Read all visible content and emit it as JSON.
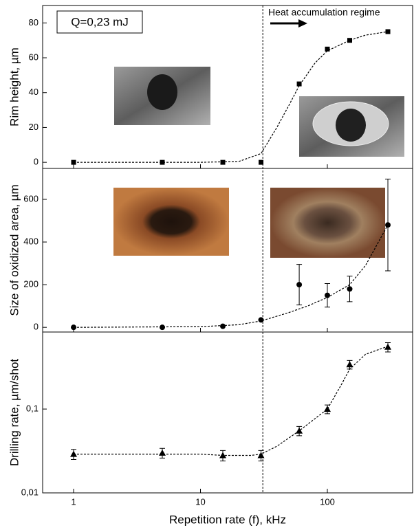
{
  "chart_data": [
    {
      "type": "scatter",
      "ylabel": "Rim height, µm",
      "xlog": true,
      "xlim": [
        0.57,
        470
      ],
      "xticks": [
        1,
        10,
        100
      ],
      "ylim": [
        -3.5,
        90
      ],
      "yticks": [
        0,
        20,
        40,
        60,
        80
      ],
      "vline": 31,
      "annotations": [
        "Q=0,23 mJ",
        "Heat accumulation regime"
      ],
      "series": [
        {
          "marker": "square",
          "color": "#000000",
          "x": [
            1,
            5,
            15,
            30,
            60,
            100,
            150,
            300
          ],
          "values": [
            0,
            0,
            0,
            0,
            45,
            65,
            70,
            75
          ]
        },
        {
          "marker": "none",
          "line_style": "dashed",
          "color": "#000000",
          "x": [
            1,
            10,
            20,
            30,
            40,
            50,
            60,
            80,
            100,
            150,
            200,
            300
          ],
          "values": [
            0,
            0,
            0.5,
            5,
            20,
            33,
            44,
            57,
            64,
            70,
            73,
            75
          ]
        }
      ]
    },
    {
      "type": "scatter",
      "ylabel": "Size of oxidized area, µm",
      "xlog": true,
      "xlim": [
        0.57,
        470
      ],
      "xticks": [
        1,
        10,
        100
      ],
      "ylim": [
        -22,
        745
      ],
      "yticks": [
        0,
        200,
        400,
        600
      ],
      "series": [
        {
          "marker": "circle",
          "color": "#000000",
          "x": [
            1,
            5,
            15,
            30,
            60,
            100,
            150,
            300
          ],
          "values": [
            0,
            0,
            5,
            35,
            200,
            150,
            180,
            480
          ],
          "errors": [
            0,
            0,
            0,
            0,
            95,
            55,
            60,
            215
          ]
        },
        {
          "marker": "none",
          "line_style": "dashed",
          "color": "#000000",
          "x": [
            1,
            10,
            20,
            30,
            50,
            70,
            100,
            150,
            200,
            300
          ],
          "values": [
            0,
            3,
            12,
            30,
            70,
            100,
            140,
            200,
            290,
            480
          ]
        }
      ]
    },
    {
      "type": "scatter",
      "ylabel": "Drilling rate, µm/shot",
      "xlabel": "Repetition rate (f), kHz",
      "xlog": true,
      "ylog": true,
      "xlim": [
        0.57,
        470
      ],
      "xticks": [
        1,
        10,
        100
      ],
      "ylim": [
        0.01,
        0.83
      ],
      "yticks": [
        {
          "value": 0.01,
          "label": "0,01"
        },
        {
          "value": 0.1,
          "label": "0,1"
        }
      ],
      "series": [
        {
          "marker": "triangle",
          "color": "#000000",
          "x": [
            1,
            5,
            15,
            30,
            60,
            100,
            150,
            300
          ],
          "values": [
            0.029,
            0.03,
            0.028,
            0.028,
            0.055,
            0.1,
            0.34,
            0.55
          ],
          "errors": [
            0.004,
            0.004,
            0.004,
            0.004,
            0.007,
            0.012,
            0.04,
            0.07
          ]
        },
        {
          "marker": "none",
          "line_style": "dashed",
          "color": "#000000",
          "x": [
            1,
            5,
            10,
            15,
            25,
            30,
            40,
            60,
            100,
            130,
            150,
            200,
            300
          ],
          "values": [
            0.029,
            0.029,
            0.029,
            0.028,
            0.028,
            0.029,
            0.036,
            0.055,
            0.1,
            0.2,
            0.3,
            0.45,
            0.56
          ]
        }
      ]
    }
  ]
}
